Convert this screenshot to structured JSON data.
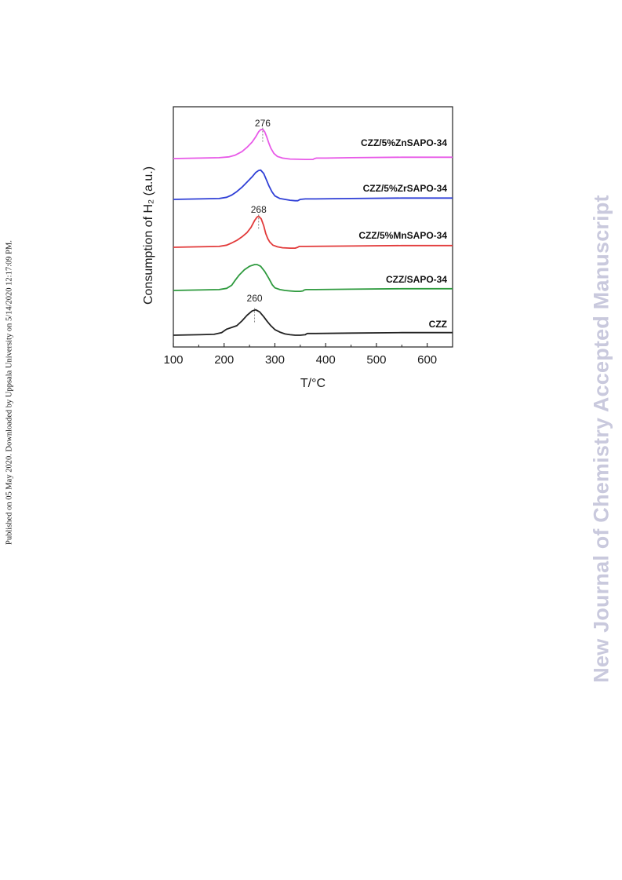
{
  "page": {
    "side_note": "Published on 05 May 2020. Downloaded by Uppsala University on 5/14/2020 12:17:09 PM.",
    "watermark": "New Journal of Chemistry Accepted Manuscript"
  },
  "chart_data": {
    "type": "line",
    "title": "",
    "xlabel": "T/°C",
    "ylabel": "Consumption of H₂ (a.u.)",
    "xlim": [
      100,
      650
    ],
    "xticks": [
      100,
      200,
      300,
      400,
      500,
      600
    ],
    "grid": false,
    "series": [
      {
        "name": "CZZ",
        "color": "#222222",
        "peak_label": "260",
        "peak_x": 260,
        "x": [
          100,
          150,
          180,
          195,
          205,
          215,
          225,
          235,
          245,
          255,
          262,
          270,
          278,
          285,
          292,
          300,
          310,
          320,
          330,
          340,
          350,
          360,
          362,
          364,
          380,
          450,
          550,
          650
        ],
        "y": [
          0,
          0.01,
          0.02,
          0.06,
          0.14,
          0.18,
          0.22,
          0.33,
          0.46,
          0.56,
          0.59,
          0.54,
          0.43,
          0.32,
          0.22,
          0.13,
          0.07,
          0.03,
          0.01,
          0,
          0,
          0.01,
          0.03,
          0.04,
          0.04,
          0.05,
          0.06,
          0.06
        ]
      },
      {
        "name": "CZZ/SAPO-34",
        "color": "#2e9a3e",
        "peak_label": "",
        "x": [
          100,
          150,
          190,
          205,
          215,
          222,
          230,
          240,
          250,
          260,
          265,
          272,
          280,
          288,
          295,
          300,
          310,
          320,
          330,
          340,
          350,
          355,
          358,
          362,
          380,
          450,
          550,
          650
        ],
        "y": [
          0,
          0.01,
          0.02,
          0.05,
          0.12,
          0.24,
          0.36,
          0.48,
          0.56,
          0.6,
          0.6,
          0.56,
          0.44,
          0.28,
          0.13,
          0.06,
          0.02,
          0,
          -0.01,
          -0.02,
          -0.02,
          -0.01,
          0.01,
          0.02,
          0.02,
          0.03,
          0.04,
          0.04
        ]
      },
      {
        "name": "CZZ/5%MnSAPO-34",
        "color": "#e23a3a",
        "peak_label": "268",
        "peak_x": 268,
        "x": [
          100,
          150,
          190,
          205,
          215,
          225,
          235,
          245,
          253,
          260,
          265,
          268,
          273,
          278,
          282,
          286,
          290,
          296,
          305,
          315,
          330,
          340,
          345,
          348,
          360,
          450,
          550,
          650
        ],
        "y": [
          0,
          0.01,
          0.02,
          0.05,
          0.1,
          0.16,
          0.24,
          0.34,
          0.46,
          0.62,
          0.7,
          0.72,
          0.66,
          0.5,
          0.32,
          0.2,
          0.12,
          0.05,
          0.01,
          -0.01,
          -0.02,
          -0.02,
          0,
          0.02,
          0.02,
          0.03,
          0.04,
          0.04
        ]
      },
      {
        "name": "CZZ/5%ZrSAPO-34",
        "color": "#2f3fd6",
        "peak_label": "",
        "x": [
          100,
          150,
          190,
          205,
          215,
          225,
          235,
          245,
          255,
          262,
          268,
          272,
          278,
          283,
          288,
          294,
          300,
          310,
          320,
          330,
          340,
          345,
          350,
          360,
          380,
          450,
          550,
          650
        ],
        "y": [
          0,
          0.01,
          0.02,
          0.05,
          0.1,
          0.18,
          0.28,
          0.4,
          0.52,
          0.62,
          0.67,
          0.68,
          0.6,
          0.46,
          0.32,
          0.18,
          0.08,
          0.02,
          0,
          -0.02,
          -0.03,
          -0.03,
          0,
          0.01,
          0.01,
          0.02,
          0.03,
          0.03
        ]
      },
      {
        "name": "CZZ/5%ZnSAPO-34",
        "color": "#e85ae8",
        "peak_label": "276",
        "peak_x": 276,
        "x": [
          100,
          150,
          190,
          210,
          222,
          235,
          245,
          255,
          262,
          268,
          272,
          276,
          280,
          284,
          288,
          292,
          298,
          305,
          315,
          330,
          360,
          375,
          378,
          382,
          400,
          450,
          550,
          650
        ],
        "y": [
          0,
          0.01,
          0.02,
          0.04,
          0.08,
          0.16,
          0.26,
          0.38,
          0.5,
          0.62,
          0.67,
          0.68,
          0.62,
          0.5,
          0.36,
          0.24,
          0.12,
          0.05,
          0.01,
          -0.01,
          -0.02,
          -0.02,
          0,
          0.01,
          0.01,
          0.02,
          0.03,
          0.03
        ]
      }
    ]
  }
}
